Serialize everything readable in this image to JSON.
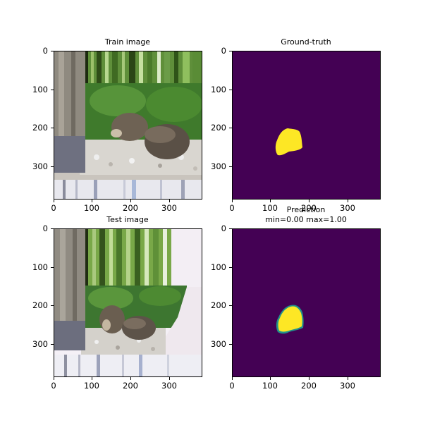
{
  "colors": {
    "mask_background": "#440154",
    "mask_foreground": "#fde725",
    "mask_edge": "#21918c"
  },
  "chart_data": [
    {
      "type": "image",
      "title": "Train image",
      "xlim": [
        0,
        384
      ],
      "ylim": [
        384,
        0
      ],
      "xticks": [
        "0",
        "100",
        "200",
        "300"
      ],
      "yticks": [
        "0",
        "100",
        "200",
        "300"
      ]
    },
    {
      "type": "heatmap",
      "title": "Ground-truth",
      "colormap": "viridis",
      "xlim": [
        0,
        384
      ],
      "ylim": [
        384,
        0
      ],
      "xticks": [
        "0",
        "100",
        "200",
        "300"
      ],
      "yticks": [
        "0",
        "100",
        "200",
        "300"
      ]
    },
    {
      "type": "image",
      "title": "Test image",
      "xlim": [
        0,
        384
      ],
      "ylim": [
        384,
        0
      ],
      "xticks": [
        "0",
        "100",
        "200",
        "300"
      ],
      "yticks": [
        "0",
        "100",
        "200",
        "300"
      ]
    },
    {
      "type": "heatmap",
      "title": "Prediction",
      "subtitle": "min=0.00 max=1.00",
      "colormap": "viridis",
      "xlim": [
        0,
        384
      ],
      "ylim": [
        384,
        0
      ],
      "xticks": [
        "0",
        "100",
        "200",
        "300"
      ],
      "yticks": [
        "0",
        "100",
        "200",
        "300"
      ]
    }
  ]
}
